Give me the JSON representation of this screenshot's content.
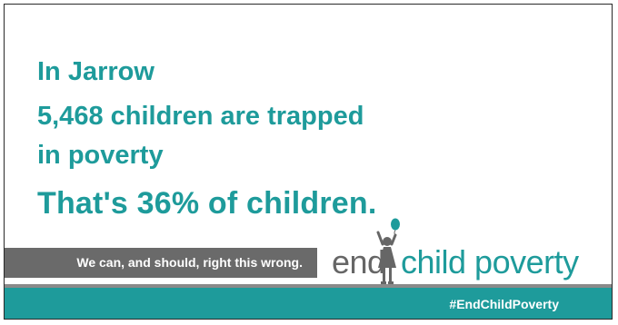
{
  "headline": {
    "location": "In Jarrow",
    "stat": "5,468 children are trapped",
    "stat_cont": "in poverty",
    "percent": "That's 36% of children."
  },
  "slogan": "We can, and should, right this wrong.",
  "logo": {
    "word_end": "end",
    "word_rest": "child poverty",
    "icon": "child-with-balloon-icon"
  },
  "hashtag": "#EndChildPoverty",
  "colors": {
    "teal": "#1e9b9b",
    "grey_band": "#6a6a6a",
    "logo_grey": "#666666",
    "footer_rule": "#8a8a8a"
  }
}
